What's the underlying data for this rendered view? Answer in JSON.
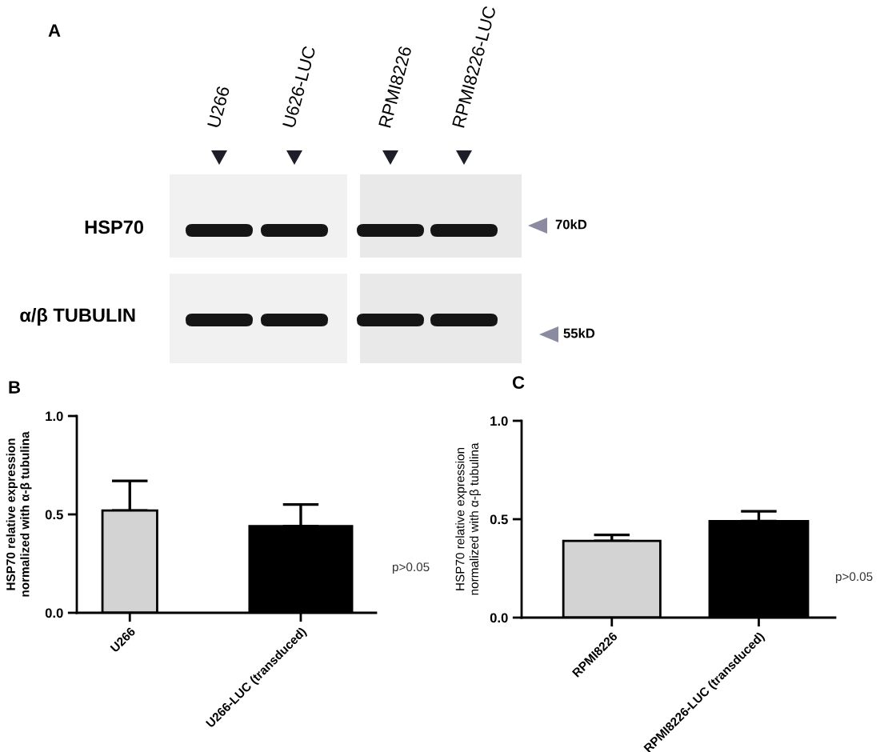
{
  "chart_data": [
    {
      "type": "other",
      "title": "A",
      "categories": [
        "U266",
        "U626-LUC",
        "RPMI8226",
        "RPMI8226-LUC"
      ],
      "y_categories": [
        "HSP70",
        "α/β TUBULIN"
      ],
      "y2_categories": [
        "70kD",
        "55kD"
      ]
    },
    {
      "type": "bar",
      "title": "B",
      "ylabel": "HSP70 relative expression\nnormalized with α-β tubulina",
      "categories": [
        "U266",
        "U266-LUC (transduced)"
      ],
      "values": [
        0.52,
        0.44
      ],
      "colors": [
        "#d3d3d3",
        "#000000"
      ],
      "errors": [
        [
          0.52,
          0.67
        ],
        [
          0.44,
          0.55
        ]
      ],
      "ylim": [
        0,
        1
      ],
      "yticks": [
        {
          "value": 0,
          "label": "0.0"
        },
        {
          "value": 0.5,
          "label": "0.5"
        },
        {
          "value": 1,
          "label": "1.0"
        }
      ],
      "annotations": [
        "p>0.05"
      ]
    },
    {
      "type": "bar",
      "title": "C",
      "ylabel": "HSP70 relative expression\nnormalized with α-β tubulina",
      "categories": [
        "RPMI8226",
        "RPMI8226-LUC (transduced)"
      ],
      "values": [
        0.39,
        0.49
      ],
      "colors": [
        "#d3d3d3",
        "#000000"
      ],
      "errors": [
        [
          0.39,
          0.42
        ],
        [
          0.49,
          0.54
        ]
      ],
      "ylim": [
        0,
        1
      ],
      "yticks": [
        {
          "value": 0,
          "label": "0.0"
        },
        {
          "value": 0.5,
          "label": "0.5"
        },
        {
          "value": 1,
          "label": "1.0"
        }
      ],
      "annotations": [
        "p>0.05"
      ]
    }
  ]
}
